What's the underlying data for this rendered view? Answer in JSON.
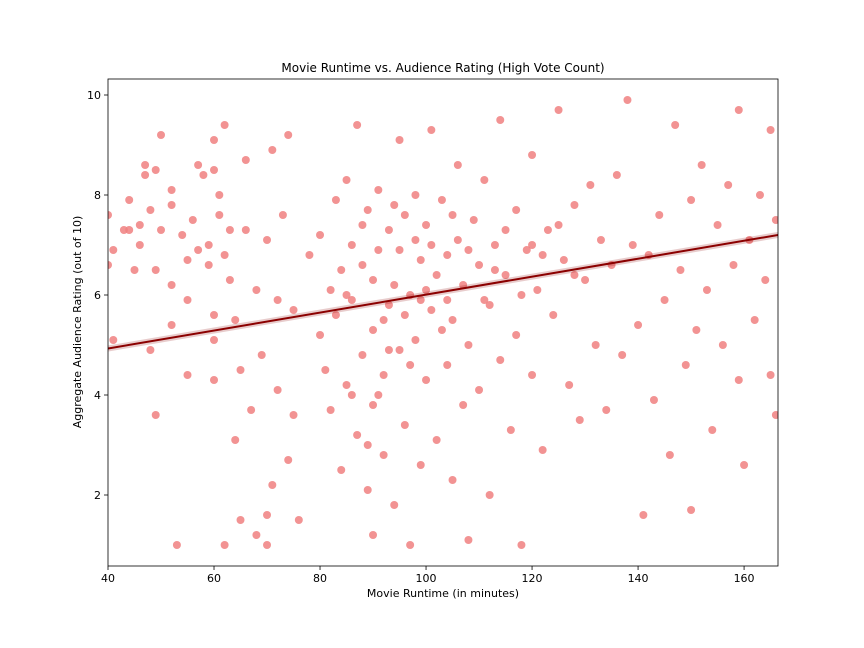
{
  "chart_data": {
    "type": "scatter",
    "title": "Movie Runtime vs. Audience Rating (High Vote Count)",
    "xlabel": "Movie Runtime (in minutes)",
    "ylabel": "Aggregate Audience Rating (out of 10)",
    "color": "#f08080",
    "x": [
      40,
      40,
      41,
      41,
      43,
      44,
      44,
      45,
      46,
      46,
      47,
      47,
      48,
      48,
      49,
      49,
      49,
      50,
      50,
      52,
      52,
      52,
      52,
      53,
      54,
      55,
      55,
      55,
      56,
      57,
      57,
      58,
      59,
      59,
      60,
      60,
      60,
      60,
      60,
      61,
      61,
      62,
      62,
      62,
      63,
      63,
      64,
      64,
      65,
      65,
      66,
      66,
      67,
      68,
      68,
      69,
      70,
      70,
      70,
      71,
      71,
      72,
      72,
      73,
      74,
      74,
      75,
      75,
      76,
      78,
      80,
      80,
      81,
      82,
      82,
      83,
      83,
      84,
      84,
      85,
      85,
      86,
      86,
      87,
      87,
      88,
      88,
      89,
      89,
      90,
      90,
      90,
      91,
      91,
      92,
      92,
      93,
      93,
      94,
      94,
      95,
      95,
      96,
      96,
      97,
      97,
      98,
      98,
      99,
      99,
      100,
      100,
      101,
      101,
      102,
      102,
      103,
      104,
      104,
      105,
      105,
      106,
      106,
      107,
      107,
      108,
      108,
      109,
      110,
      110,
      111,
      112,
      112,
      113,
      114,
      114,
      115,
      116,
      117,
      117,
      118,
      119,
      120,
      120,
      121,
      122,
      123,
      124,
      125,
      126,
      127,
      128,
      129,
      130,
      131,
      132,
      133,
      134,
      135,
      136,
      137,
      138,
      139,
      140,
      141,
      142,
      143,
      144,
      145,
      146,
      147,
      148,
      149,
      150,
      150,
      151,
      152,
      153,
      154,
      155,
      156,
      157,
      158,
      159,
      159,
      160,
      161,
      162,
      163,
      164,
      165,
      165,
      166,
      166,
      85,
      88,
      90,
      92,
      94,
      95,
      97,
      99,
      100,
      103,
      105,
      108,
      111,
      113,
      115,
      118,
      120,
      122,
      125,
      128,
      86,
      89,
      91,
      93,
      96,
      98,
      101,
      104
    ],
    "values": [
      7.6,
      6.6,
      6.9,
      5.1,
      7.3,
      7.9,
      7.3,
      6.5,
      7.4,
      7.0,
      8.4,
      8.6,
      7.7,
      4.9,
      8.5,
      6.5,
      3.6,
      9.2,
      7.3,
      8.1,
      7.8,
      6.2,
      5.4,
      1.0,
      7.2,
      6.7,
      5.9,
      4.4,
      7.5,
      6.9,
      8.6,
      8.4,
      7.0,
      6.6,
      8.5,
      9.1,
      5.6,
      5.1,
      4.3,
      7.6,
      8.0,
      9.4,
      6.8,
      1.0,
      6.3,
      7.3,
      3.1,
      5.5,
      1.5,
      4.5,
      7.3,
      8.7,
      3.7,
      6.1,
      1.2,
      4.8,
      1.6,
      1.0,
      7.1,
      2.2,
      8.9,
      5.9,
      4.1,
      7.6,
      2.7,
      9.2,
      5.7,
      3.6,
      1.5,
      6.8,
      5.2,
      7.2,
      4.5,
      6.1,
      3.7,
      7.9,
      5.6,
      2.5,
      6.5,
      8.3,
      4.2,
      5.9,
      7.0,
      3.2,
      9.4,
      6.6,
      4.8,
      2.1,
      7.7,
      5.3,
      1.2,
      3.8,
      6.9,
      8.1,
      4.4,
      2.8,
      7.3,
      5.8,
      1.8,
      6.2,
      9.1,
      4.9,
      7.6,
      3.4,
      6.0,
      1.0,
      5.1,
      8.0,
      6.7,
      2.6,
      7.4,
      4.3,
      9.3,
      5.7,
      6.4,
      3.1,
      7.9,
      4.6,
      6.8,
      2.3,
      5.5,
      7.1,
      8.6,
      6.2,
      3.8,
      1.1,
      5.0,
      7.5,
      6.6,
      4.1,
      8.3,
      5.8,
      2.0,
      7.0,
      9.5,
      4.7,
      6.4,
      3.3,
      7.7,
      5.2,
      1.0,
      6.9,
      8.8,
      4.4,
      6.1,
      2.9,
      7.3,
      5.6,
      9.7,
      6.7,
      4.2,
      7.8,
      3.5,
      6.3,
      8.2,
      5.0,
      7.1,
      3.7,
      6.6,
      8.4,
      4.8,
      9.9,
      7.0,
      5.4,
      1.6,
      6.8,
      3.9,
      7.6,
      5.9,
      2.8,
      9.4,
      6.5,
      4.6,
      7.9,
      1.7,
      5.3,
      8.6,
      6.1,
      3.3,
      7.4,
      5.0,
      8.2,
      6.6,
      9.7,
      4.3,
      2.6,
      7.1,
      5.5,
      8.0,
      6.3,
      4.4,
      9.3,
      7.5,
      3.6,
      6.0,
      7.4,
      6.3,
      5.5,
      7.8,
      6.9,
      4.6,
      5.9,
      6.1,
      5.3,
      7.6,
      6.9,
      5.9,
      6.5,
      7.3,
      6.0,
      7.0,
      6.8,
      7.4,
      6.4,
      4.0,
      3.0,
      4.0,
      4.9,
      5.6,
      7.1,
      7.0,
      5.9
    ],
    "trend_x": [
      40,
      166.4
    ],
    "trend_y": [
      4.93,
      7.2
    ],
    "trend_color": "#8b0000",
    "xlim": [
      40,
      166.4
    ],
    "ylim": [
      0.58,
      10.32
    ],
    "xticks": [
      40,
      60,
      80,
      100,
      120,
      140,
      160
    ],
    "yticks": [
      2,
      4,
      6,
      8,
      10
    ],
    "grid": false
  }
}
